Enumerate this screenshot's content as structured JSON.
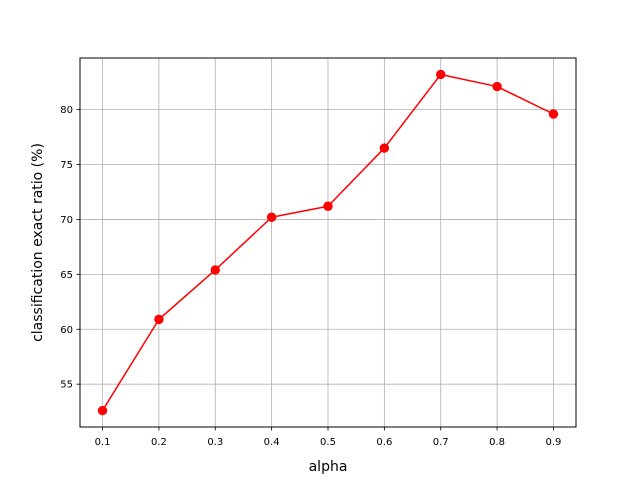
{
  "chart_data": {
    "type": "line",
    "title": "",
    "xlabel": "alpha",
    "ylabel": "classification exact ratio (%)",
    "x": [
      0.1,
      0.2,
      0.3,
      0.4,
      0.5,
      0.6,
      0.7,
      0.8,
      0.9
    ],
    "series": [
      {
        "color": "#ff0000",
        "marker": "circle",
        "values": [
          52.6,
          60.9,
          65.4,
          70.2,
          71.2,
          76.5,
          83.2,
          82.1,
          79.6
        ]
      }
    ],
    "xlim": [
      0.06,
      0.94
    ],
    "ylim": [
      51.1,
      84.7
    ],
    "xticks": [
      "0.1",
      "0.2",
      "0.3",
      "0.4",
      "0.5",
      "0.6",
      "0.7",
      "0.8",
      "0.9"
    ],
    "yticks": [
      "55",
      "60",
      "65",
      "70",
      "75",
      "80"
    ],
    "grid": true,
    "colors": {
      "grid": "#b0b0b0",
      "axes": "#000000",
      "line": "#ff0000"
    }
  }
}
